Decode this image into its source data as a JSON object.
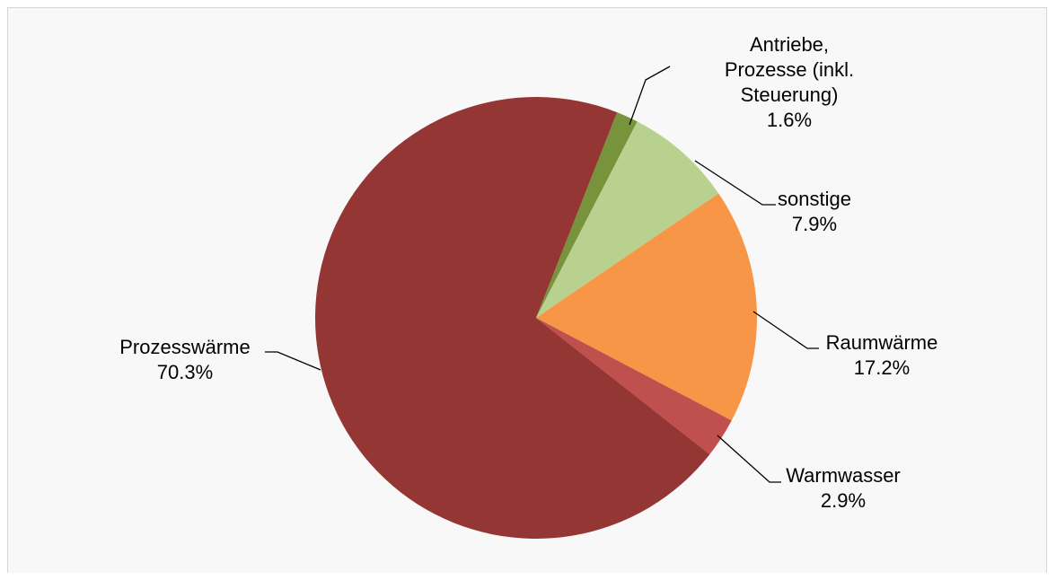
{
  "chart_data": {
    "type": "pie",
    "title": "",
    "slices": [
      {
        "label_lines": [
          "Antriebe,",
          "Prozesse (inkl.",
          "Steuerung)"
        ],
        "value_label": "1.6%",
        "value": 1.6,
        "color": "#77933c"
      },
      {
        "label_lines": [
          "sonstige"
        ],
        "value_label": "7.9%",
        "value": 7.9,
        "color": "#b9d18f"
      },
      {
        "label_lines": [
          "Raumwärme"
        ],
        "value_label": "17.2%",
        "value": 17.2,
        "color": "#f79646"
      },
      {
        "label_lines": [
          "Warmwasser"
        ],
        "value_label": "2.9%",
        "value": 2.9,
        "color": "#c0504d"
      },
      {
        "label_lines": [
          "Prozesswärme"
        ],
        "value_label": "70.3%",
        "value": 70.3,
        "color": "#943634"
      }
    ],
    "start_angle_deg": 21.5,
    "direction": "clockwise",
    "legend": "none",
    "data_labels": "outside with leader lines"
  }
}
